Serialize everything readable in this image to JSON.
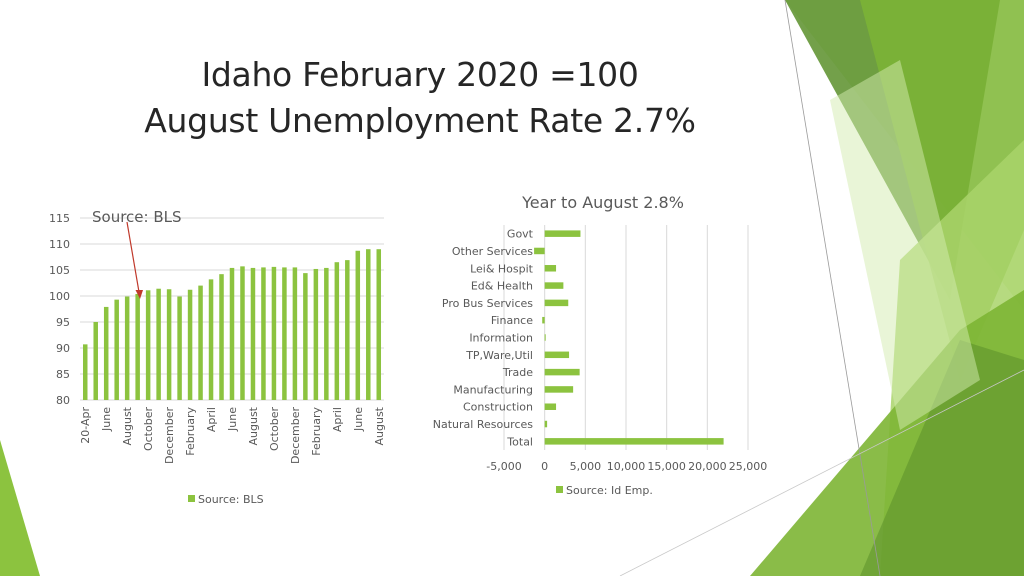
{
  "title": {
    "line1": "Idaho February 2020 =100",
    "line2": "August Unemployment Rate 2.7%"
  },
  "colors": {
    "bar": "#8cc33f",
    "grid": "#d9d9d9",
    "axis_text": "#595959",
    "annotation_arrow": "#c0392b",
    "deco_dark": "#5b8f2a",
    "deco_mid": "#7db534",
    "deco_light": "#a9d46a",
    "deco_pale": "#d4ebb0"
  },
  "chart_data": [
    {
      "type": "bar",
      "title": "",
      "annotation": "Source: BLS",
      "legend": [
        "Source: BLS"
      ],
      "legend_position": "bottom",
      "grid": true,
      "ylim": [
        80,
        115
      ],
      "yticks": [
        80,
        85,
        90,
        95,
        100,
        105,
        110,
        115
      ],
      "categories": [
        "20-Apr",
        "",
        "June",
        "",
        "August",
        "",
        "October",
        "",
        "December",
        "",
        "February",
        "",
        "April",
        "",
        "June",
        "",
        "August",
        "",
        "October",
        "",
        "December",
        "",
        "February",
        "",
        "April",
        "",
        "June",
        "",
        "August"
      ],
      "values": [
        90.7,
        95.0,
        97.9,
        99.3,
        99.9,
        100.4,
        101.1,
        101.4,
        101.3,
        99.9,
        101.2,
        102.0,
        103.2,
        104.2,
        105.4,
        105.7,
        105.4,
        105.5,
        105.6,
        105.5,
        105.5,
        104.4,
        105.2,
        105.4,
        106.5,
        106.9,
        108.7,
        109.0,
        109.0
      ]
    },
    {
      "type": "bar",
      "orientation": "horizontal",
      "title": "Year to August 2.8%",
      "legend": [
        "Source: Id Emp."
      ],
      "legend_position": "bottom",
      "grid": true,
      "xlim": [
        -5000,
        25000
      ],
      "xticks": [
        -5000,
        0,
        5000,
        10000,
        15000,
        20000,
        25000
      ],
      "xtick_labels": [
        "-5,000",
        "0",
        "5,000",
        "10,000",
        "15,000",
        "20,000",
        "25,000"
      ],
      "categories": [
        "Govt",
        "Other Services",
        "Lei& Hospit",
        "Ed& Health",
        "Pro Bus Services",
        "Finance",
        "Information",
        "TP,Ware,Util",
        "Trade",
        "Manufacturing",
        "Construction",
        "Natural Resources",
        "Total"
      ],
      "values": [
        4400,
        -1300,
        1400,
        2300,
        2900,
        -300,
        100,
        3000,
        4300,
        3500,
        1400,
        300,
        22000
      ]
    }
  ]
}
